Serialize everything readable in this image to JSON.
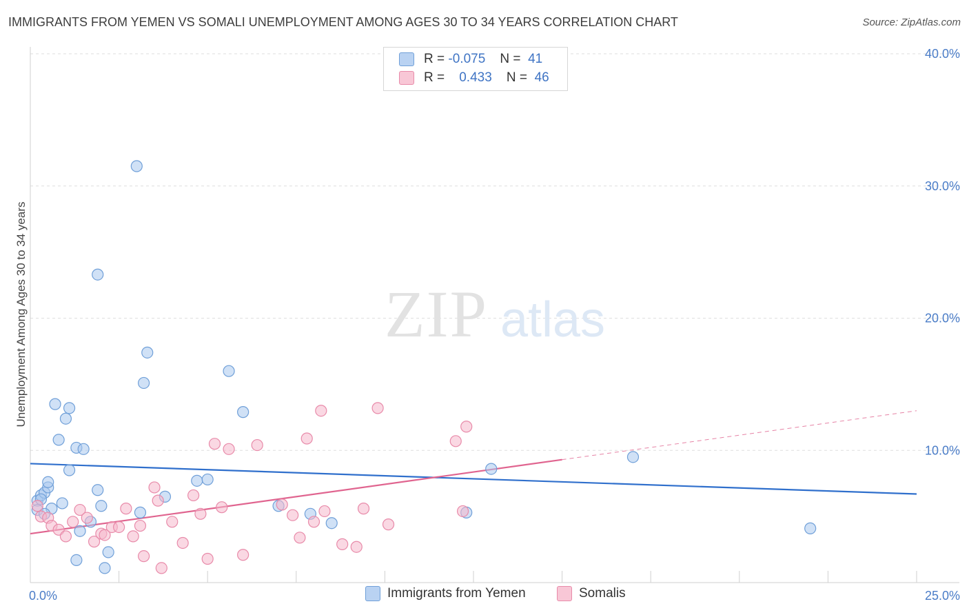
{
  "title": "IMMIGRANTS FROM YEMEN VS SOMALI UNEMPLOYMENT AMONG AGES 30 TO 34 YEARS CORRELATION CHART",
  "source": "Source: ZipAtlas.com",
  "watermark": {
    "zip": "ZIP",
    "atlas": "atlas"
  },
  "legend": {
    "rows": [
      {
        "r_label": "R =",
        "r_value": "-0.075",
        "n_label": "N =",
        "n_value": "41"
      },
      {
        "r_label": "R =",
        "r_value": "0.433",
        "n_label": "N =",
        "n_value": "46"
      }
    ]
  },
  "chart_data": {
    "type": "scatter",
    "title": "IMMIGRANTS FROM YEMEN VS SOMALI UNEMPLOYMENT AMONG AGES 30 TO 34 YEARS CORRELATION CHART",
    "xlabel": "",
    "ylabel": "Unemployment Among Ages 30 to 34 years",
    "xlim": [
      0,
      25
    ],
    "ylim": [
      0,
      40
    ],
    "x_tick_labels": [
      "0.0%",
      "25.0%"
    ],
    "y_ticks": [
      10,
      20,
      30,
      40
    ],
    "y_tick_labels": [
      "10.0%",
      "20.0%",
      "30.0%",
      "40.0%"
    ],
    "colors": {
      "blue_fill": "#a9c8ef",
      "blue_stroke": "#6f9fd8",
      "blue_line": "#2f6fcc",
      "pink_fill": "#f6b8cc",
      "pink_stroke": "#e88aa9",
      "pink_line": "#e0648f"
    },
    "series": [
      {
        "name": "Immigrants from Yemen",
        "color": "#a9c8ef",
        "points": [
          [
            0.2,
            6.2
          ],
          [
            0.3,
            6.6
          ],
          [
            0.4,
            6.8
          ],
          [
            0.5,
            7.2
          ],
          [
            0.5,
            7.6
          ],
          [
            0.6,
            5.6
          ],
          [
            0.7,
            13.5
          ],
          [
            0.8,
            10.8
          ],
          [
            0.9,
            6.0
          ],
          [
            1.0,
            12.4
          ],
          [
            1.1,
            13.2
          ],
          [
            1.1,
            8.5
          ],
          [
            1.3,
            10.2
          ],
          [
            1.4,
            3.9
          ],
          [
            1.5,
            10.1
          ],
          [
            1.7,
            4.6
          ],
          [
            1.9,
            7.0
          ],
          [
            2.0,
            5.8
          ],
          [
            2.1,
            1.1
          ],
          [
            2.2,
            2.3
          ],
          [
            1.3,
            1.7
          ],
          [
            1.9,
            23.3
          ],
          [
            3.0,
            31.5
          ],
          [
            3.1,
            5.3
          ],
          [
            3.2,
            15.1
          ],
          [
            3.3,
            17.4
          ],
          [
            3.8,
            6.5
          ],
          [
            4.7,
            7.7
          ],
          [
            5.0,
            7.8
          ],
          [
            5.6,
            16.0
          ],
          [
            6.0,
            12.9
          ],
          [
            7.0,
            5.8
          ],
          [
            7.9,
            5.2
          ],
          [
            8.5,
            4.5
          ],
          [
            12.3,
            5.3
          ],
          [
            13.0,
            8.6
          ],
          [
            17.0,
            9.5
          ],
          [
            22.0,
            4.1
          ],
          [
            0.2,
            5.5
          ],
          [
            0.3,
            6.3
          ],
          [
            0.4,
            5.2
          ]
        ],
        "trend": {
          "x0": 0,
          "y0": 9.0,
          "x1": 25,
          "y1": 6.7
        }
      },
      {
        "name": "Somalis",
        "color": "#f6b8cc",
        "points": [
          [
            0.2,
            5.8
          ],
          [
            0.3,
            5.0
          ],
          [
            0.5,
            4.9
          ],
          [
            0.6,
            4.3
          ],
          [
            0.8,
            4.0
          ],
          [
            1.0,
            3.5
          ],
          [
            1.2,
            4.6
          ],
          [
            1.4,
            5.5
          ],
          [
            1.6,
            4.9
          ],
          [
            1.8,
            3.1
          ],
          [
            2.0,
            3.7
          ],
          [
            2.1,
            3.6
          ],
          [
            2.3,
            4.2
          ],
          [
            2.5,
            4.2
          ],
          [
            2.7,
            5.6
          ],
          [
            2.9,
            3.5
          ],
          [
            3.1,
            4.3
          ],
          [
            3.2,
            2.0
          ],
          [
            3.5,
            7.2
          ],
          [
            3.6,
            6.2
          ],
          [
            3.7,
            1.1
          ],
          [
            4.0,
            4.6
          ],
          [
            4.3,
            3.0
          ],
          [
            4.6,
            6.6
          ],
          [
            4.8,
            5.2
          ],
          [
            5.0,
            1.8
          ],
          [
            5.2,
            10.5
          ],
          [
            5.4,
            5.7
          ],
          [
            5.6,
            10.1
          ],
          [
            6.0,
            2.1
          ],
          [
            6.4,
            10.4
          ],
          [
            7.1,
            5.9
          ],
          [
            7.4,
            5.1
          ],
          [
            7.6,
            3.4
          ],
          [
            7.8,
            10.9
          ],
          [
            8.0,
            4.6
          ],
          [
            8.2,
            13.0
          ],
          [
            8.3,
            5.4
          ],
          [
            8.8,
            2.9
          ],
          [
            9.2,
            2.7
          ],
          [
            9.4,
            5.6
          ],
          [
            9.8,
            13.2
          ],
          [
            10.1,
            4.4
          ],
          [
            12.0,
            10.7
          ],
          [
            12.3,
            11.8
          ],
          [
            12.2,
            5.4
          ]
        ],
        "trend": {
          "x0": 0,
          "y0": 3.7,
          "x1": 15,
          "y1": 9.3,
          "x_dashed_end": 25,
          "y_dashed_end": 13.0
        }
      }
    ]
  }
}
